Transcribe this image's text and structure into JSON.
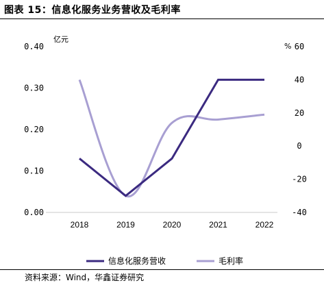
{
  "figure": {
    "title": "图表 15：信息化服务业务营收及毛利率",
    "source": "资料来源：Wind，华鑫证券研究"
  },
  "chart_data": {
    "type": "line",
    "categories": [
      "2018",
      "2019",
      "2020",
      "2021",
      "2022"
    ],
    "series": [
      {
        "name": "信息化服务营收",
        "axis": "left",
        "color": "#3b2a80",
        "values": [
          0.13,
          0.04,
          0.13,
          0.32,
          0.32
        ]
      },
      {
        "name": "毛利率",
        "axis": "right",
        "color": "#a89fd2",
        "values": [
          40,
          -30,
          14,
          16,
          19
        ]
      }
    ],
    "y_left": {
      "unit": "亿元",
      "ylim": [
        0,
        0.4
      ],
      "ticks": [
        "0.00",
        "0.10",
        "0.20",
        "0.30",
        "0.40"
      ],
      "tick_values": [
        0,
        0.1,
        0.2,
        0.3,
        0.4
      ]
    },
    "y_right": {
      "unit": "%",
      "ylim": [
        -40,
        60
      ],
      "ticks": [
        "-40",
        "-20",
        "0",
        "20",
        "40",
        "60"
      ],
      "tick_values": [
        -40,
        -20,
        0,
        20,
        40,
        60
      ]
    },
    "grid": false,
    "legend": "bottom"
  }
}
